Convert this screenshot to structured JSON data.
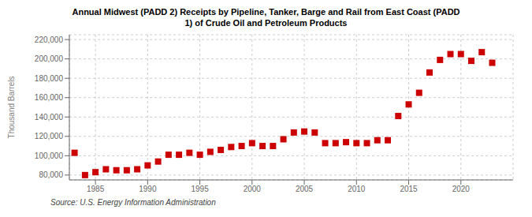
{
  "chart_data": {
    "type": "scatter",
    "title": "Annual Midwest (PADD 2) Receipts by Pipeline, Tanker, Barge and Rail from East Coast (PADD\n1) of Crude Oil and Petroleum Products",
    "ylabel": "Thousand Barrels",
    "annotations": [
      "Source: U.S. Energy Information Administration"
    ],
    "color": "#cc0000",
    "marker": "square",
    "x": [
      1983,
      1984,
      1985,
      1986,
      1987,
      1988,
      1989,
      1990,
      1991,
      1992,
      1993,
      1994,
      1995,
      1996,
      1997,
      1998,
      1999,
      2000,
      2001,
      2002,
      2003,
      2004,
      2005,
      2006,
      2007,
      2008,
      2009,
      2010,
      2011,
      2012,
      2013,
      2014,
      2015,
      2016,
      2017,
      2018,
      2019,
      2020,
      2021,
      2022,
      2023
    ],
    "values": [
      103000,
      80000,
      83000,
      86000,
      85000,
      85000,
      86000,
      90000,
      94000,
      101000,
      101000,
      103000,
      101000,
      104000,
      106000,
      109000,
      110000,
      113000,
      110000,
      110000,
      117000,
      124000,
      125000,
      124000,
      113000,
      113000,
      114000,
      113000,
      113000,
      116000,
      116000,
      141000,
      153000,
      165000,
      186000,
      199000,
      205000,
      205000,
      198000,
      207000,
      196000
    ],
    "xlim": [
      1982.5,
      2025
    ],
    "xticks": [
      1985,
      1990,
      1995,
      2000,
      2005,
      2010,
      2015,
      2020
    ],
    "ylim": [
      75000,
      225000
    ],
    "yticks": [
      {
        "value": 80000,
        "label": "80,000"
      },
      {
        "value": 100000,
        "label": "100,000"
      },
      {
        "value": 120000,
        "label": "120,000"
      },
      {
        "value": 140000,
        "label": "140,000"
      },
      {
        "value": 160000,
        "label": "160,000"
      },
      {
        "value": 180000,
        "label": "180,000"
      },
      {
        "value": 200000,
        "label": "200,000"
      },
      {
        "value": 220000,
        "label": "220,000"
      }
    ],
    "grid": true
  }
}
